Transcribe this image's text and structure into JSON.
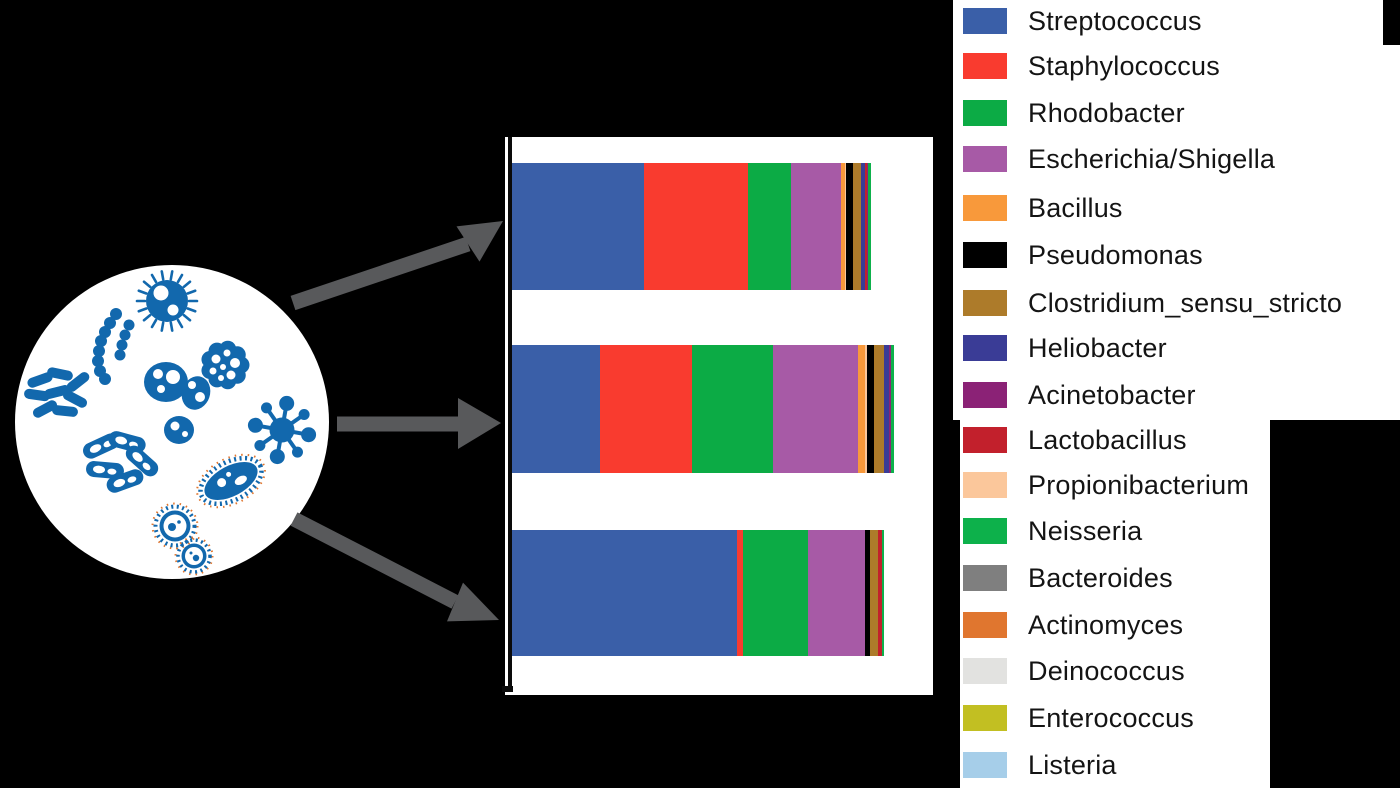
{
  "figure": {
    "background_color": "#000000",
    "arrow_color": "#58595B",
    "microbe_color": "#1268AD",
    "panel_color": "#FFFFFF"
  },
  "dish": {
    "icons": [
      "spiky-coccus",
      "streptococcus-chain",
      "staphylococcus-cluster",
      "bacilli-rods",
      "amoeboid-cells",
      "molecule",
      "capsule-bacteria",
      "ciliate",
      "ciliated-cocci"
    ],
    "accent_color": "#E0762F"
  },
  "legend": {
    "items": [
      {
        "label": "Streptococcus",
        "color": "#3A5FA8"
      },
      {
        "label": "Staphylococcus",
        "color": "#F93B2F"
      },
      {
        "label": "Rhodobacter",
        "color": "#0CAB45"
      },
      {
        "label": "Escherichia/Shigella",
        "color": "#A75AA6"
      },
      {
        "label": "Bacillus",
        "color": "#F8993B"
      },
      {
        "label": "Pseudomonas",
        "color": "#000000"
      },
      {
        "label": "Clostridium_sensu_stricto",
        "color": "#AD7B2A"
      },
      {
        "label": "Heliobacter",
        "color": "#3A3C96"
      },
      {
        "label": "Acinetobacter",
        "color": "#8B2276"
      },
      {
        "label": "Lactobacillus",
        "color": "#C2202C"
      },
      {
        "label": "Propionibacterium",
        "color": "#FBC79B"
      },
      {
        "label": "Neisseria",
        "color": "#0DB14B"
      },
      {
        "label": "Bacteroides",
        "color": "#7F7F7F"
      },
      {
        "label": "Actinomyces",
        "color": "#E0762F"
      },
      {
        "label": "Deinococcus",
        "color": "#E2E2E0"
      },
      {
        "label": "Enterococcus",
        "color": "#C2BF22"
      },
      {
        "label": "Listeria",
        "color": "#A6CEE9"
      }
    ]
  },
  "chart_data": {
    "type": "bar",
    "variant": "horizontal-stacked",
    "title": "",
    "xlabel": "",
    "ylabel": "",
    "unit": "percent of bar length (estimated relative abundance)",
    "grid": false,
    "legend_position": "right-panel",
    "categories": [
      "sample-top",
      "sample-middle",
      "sample-bottom"
    ],
    "samples": [
      {
        "name": "sample-top",
        "segments": [
          {
            "genus": "Streptococcus",
            "pct": 36.7
          },
          {
            "genus": "Staphylococcus",
            "pct": 28.9
          },
          {
            "genus": "Rhodobacter",
            "pct": 12.0
          },
          {
            "genus": "Escherichia/Shigella",
            "pct": 13.9
          },
          {
            "genus": "Bacillus",
            "pct": 1.3
          },
          {
            "genus": "Propionibacterium",
            "pct": 0.3
          },
          {
            "genus": "Pseudomonas",
            "pct": 1.9
          },
          {
            "genus": "Clostridium_sensu_stricto",
            "pct": 2.1
          },
          {
            "genus": "Heliobacter",
            "pct": 1.1
          },
          {
            "genus": "Lactobacillus",
            "pct": 0.7
          },
          {
            "genus": "Acinetobacter",
            "pct": 0.4
          },
          {
            "genus": "Neisseria",
            "pct": 0.7
          }
        ]
      },
      {
        "name": "sample-middle",
        "segments": [
          {
            "genus": "Streptococcus",
            "pct": 22.9
          },
          {
            "genus": "Staphylococcus",
            "pct": 24.3
          },
          {
            "genus": "Rhodobacter",
            "pct": 21.2
          },
          {
            "genus": "Escherichia/Shigella",
            "pct": 22.3
          },
          {
            "genus": "Bacillus",
            "pct": 1.8
          },
          {
            "genus": "Propionibacterium",
            "pct": 0.5
          },
          {
            "genus": "Pseudomonas",
            "pct": 1.8
          },
          {
            "genus": "Clostridium_sensu_stricto",
            "pct": 2.6
          },
          {
            "genus": "Heliobacter",
            "pct": 1.3
          },
          {
            "genus": "Acinetobacter",
            "pct": 0.5
          },
          {
            "genus": "Neisseria",
            "pct": 0.8
          }
        ]
      },
      {
        "name": "sample-bottom",
        "segments": [
          {
            "genus": "Streptococcus",
            "pct": 60.5
          },
          {
            "genus": "Staphylococcus",
            "pct": 1.6
          },
          {
            "genus": "Rhodobacter",
            "pct": 17.5
          },
          {
            "genus": "Escherichia/Shigella",
            "pct": 15.3
          },
          {
            "genus": "Pseudomonas",
            "pct": 1.3
          },
          {
            "genus": "Clostridium_sensu_stricto",
            "pct": 2.2
          },
          {
            "genus": "Lactobacillus",
            "pct": 1.1
          },
          {
            "genus": "Neisseria",
            "pct": 0.5
          }
        ]
      }
    ]
  }
}
